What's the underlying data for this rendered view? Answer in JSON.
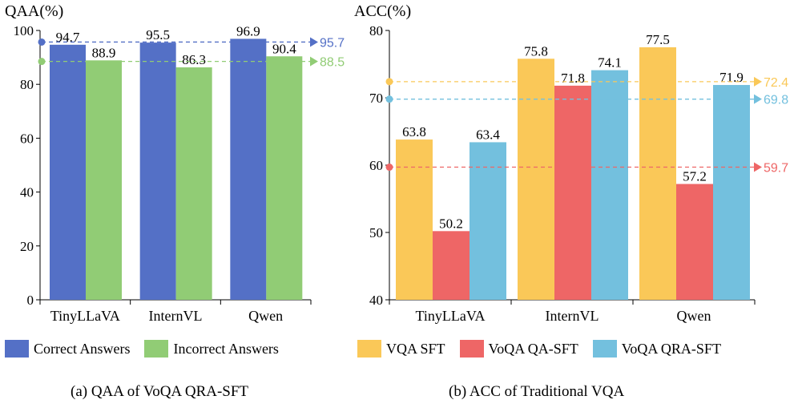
{
  "colors": {
    "blue": "#5470c6",
    "green": "#91cc75",
    "yellow": "#fac858",
    "red": "#ee6666",
    "cyan": "#73c0de"
  },
  "chart_data": [
    {
      "type": "bar",
      "ylabel": "QAA(%)",
      "ylim": [
        0,
        100
      ],
      "yticks": [
        0,
        20,
        40,
        60,
        80,
        100
      ],
      "categories": [
        "TinyLLaVA",
        "InternVL",
        "Qwen"
      ],
      "series": [
        {
          "name": "Correct Answers",
          "color": "#5470c6",
          "values": [
            94.7,
            95.5,
            96.9
          ]
        },
        {
          "name": "Incorrect Answers",
          "color": "#91cc75",
          "values": [
            88.9,
            86.3,
            90.4
          ]
        }
      ],
      "reference_lines": [
        {
          "value": 95.7,
          "label": "95.7",
          "color": "#5470c6"
        },
        {
          "value": 88.5,
          "label": "88.5",
          "color": "#91cc75"
        }
      ],
      "caption": "(a) QAA of VoQA QRA-SFT"
    },
    {
      "type": "bar",
      "ylabel": "ACC(%)",
      "ylim": [
        40,
        80
      ],
      "yticks": [
        40,
        50,
        60,
        70,
        80
      ],
      "categories": [
        "TinyLLaVA",
        "InternVL",
        "Qwen"
      ],
      "series": [
        {
          "name": "VQA SFT",
          "color": "#fac858",
          "values": [
            63.8,
            75.8,
            77.5
          ]
        },
        {
          "name": "VoQA QA-SFT",
          "color": "#ee6666",
          "values": [
            50.2,
            71.8,
            57.2
          ]
        },
        {
          "name": "VoQA QRA-SFT",
          "color": "#73c0de",
          "values": [
            63.4,
            74.1,
            71.9
          ]
        }
      ],
      "reference_lines": [
        {
          "value": 72.4,
          "label": "72.4",
          "color": "#fac858"
        },
        {
          "value": 69.8,
          "label": "69.8",
          "color": "#73c0de"
        },
        {
          "value": 59.7,
          "label": "59.7",
          "color": "#ee6666"
        }
      ],
      "caption": "(b) ACC of Traditional VQA"
    }
  ],
  "legend_a": {
    "item1": "Correct Answers",
    "item2": "Incorrect Answers"
  },
  "legend_b": {
    "item1": "VQA SFT",
    "item2": "VoQA QA-SFT",
    "item3": "VoQA QRA-SFT"
  }
}
